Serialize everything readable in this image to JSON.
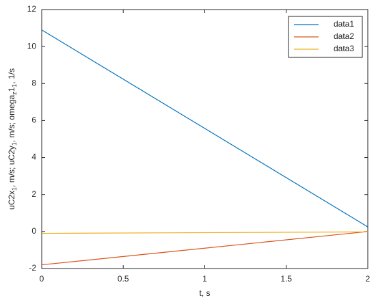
{
  "chart_data": {
    "type": "line",
    "xlabel": "t, s",
    "ylabel": [
      "uC2x",
      "1",
      ", m/s;  uC2y",
      "1",
      ", m/s;  omega",
      "z",
      "1",
      "1",
      ", 1/s"
    ],
    "x": [
      0,
      2
    ],
    "series": [
      {
        "name": "data1",
        "color": "#0072bd",
        "values": [
          10.9,
          0.25
        ]
      },
      {
        "name": "data2",
        "color": "#d95319",
        "values": [
          -1.8,
          0
        ]
      },
      {
        "name": "data3",
        "color": "#edb120",
        "values": [
          -0.1,
          -0.02
        ]
      }
    ],
    "xlim": [
      0,
      2
    ],
    "xticks": [
      0,
      0.5,
      1,
      1.5,
      2
    ],
    "ylim": [
      -2,
      12
    ],
    "yticks": [
      -2,
      0,
      2,
      4,
      6,
      8,
      10,
      12
    ],
    "grid": false,
    "legend": "top-right"
  }
}
